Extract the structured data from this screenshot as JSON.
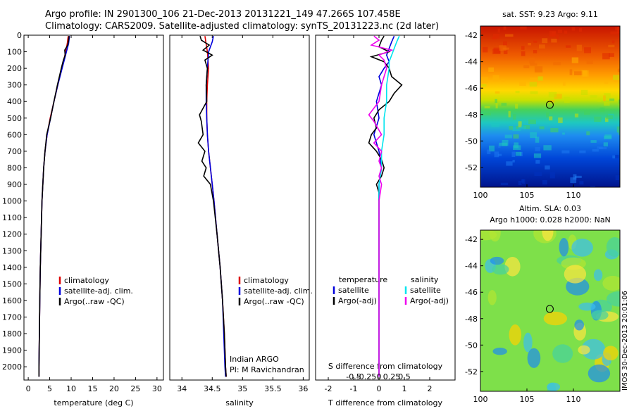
{
  "title": {
    "line1": "Argo profile: IN 2901300_106 21-Dec-2013 20131221_149 47.266S 107.458E",
    "line2": "Climatology: CARS2009. Satellite-adjusted climatology: synTS_20131223.nc (2d later)"
  },
  "colors": {
    "climatology": "#dd0000",
    "satellite": "#0000dd",
    "argo": "#000000",
    "sal_satellite": "#00e5ee",
    "sal_argo": "#ee00ee"
  },
  "chart_data": [
    {
      "type": "line",
      "id": "temperature",
      "xlabel": "temperature (deg C)",
      "xlim": [
        -1,
        31.5
      ],
      "ylim": [
        0,
        2080
      ],
      "xticks": [
        0,
        5,
        10,
        15,
        20,
        25,
        30
      ],
      "yticks": [
        0,
        100,
        200,
        300,
        400,
        500,
        600,
        700,
        800,
        900,
        1000,
        1100,
        1200,
        1300,
        1400,
        1500,
        1600,
        1700,
        1800,
        1900,
        2000
      ],
      "legend": {
        "position": "lower-center",
        "entries": [
          "climatology",
          "satellite-adj. clim.",
          "Argo(..raw -QC)"
        ]
      },
      "series": [
        {
          "name": "climatology",
          "depth": [
            5,
            50,
            100,
            150,
            200,
            300,
            400,
            500,
            600,
            700,
            800,
            900,
            1000,
            1200,
            1400,
            1600,
            1800,
            2000,
            2060
          ],
          "values": [
            9.3,
            9.1,
            8.7,
            8.3,
            7.8,
            6.9,
            6.0,
            5.1,
            4.4,
            3.9,
            3.6,
            3.4,
            3.2,
            3.0,
            2.8,
            2.7,
            2.6,
            2.5,
            2.5
          ]
        },
        {
          "name": "satellite-adj. clim.",
          "depth": [
            5,
            50,
            100,
            150,
            200,
            300,
            400,
            500,
            600,
            700,
            800,
            900,
            1000,
            1200,
            1400,
            1600,
            1800,
            2000,
            2060
          ],
          "values": [
            9.6,
            9.4,
            8.9,
            8.4,
            7.9,
            6.9,
            6.0,
            5.2,
            4.4,
            3.9,
            3.6,
            3.4,
            3.2,
            3.0,
            2.8,
            2.7,
            2.6,
            2.5,
            2.5
          ]
        },
        {
          "name": "Argo(..raw -QC)",
          "depth": [
            5,
            30,
            60,
            90,
            120,
            150,
            200,
            300,
            400,
            500,
            600,
            700,
            800,
            900,
            1000,
            1200,
            1400,
            1600,
            1800,
            2000,
            2060
          ],
          "values": [
            9.5,
            9.4,
            9.2,
            8.5,
            8.6,
            8.2,
            7.7,
            6.8,
            6.0,
            5.2,
            4.3,
            3.9,
            3.6,
            3.4,
            3.2,
            3.0,
            2.8,
            2.7,
            2.6,
            2.5,
            2.5
          ]
        }
      ]
    },
    {
      "type": "line",
      "id": "salinity",
      "xlabel": "salinity",
      "xlim": [
        33.8,
        36.1
      ],
      "ylim": [
        0,
        2080
      ],
      "xticks": [
        34,
        34.5,
        35,
        35.5,
        36
      ],
      "legend": {
        "position": "lower-center",
        "entries": [
          "climatology",
          "satellite-adj. clim.",
          "Argo(..raw -QC)"
        ]
      },
      "annotation": [
        "Indian ARGO",
        "PI: M Ravichandran"
      ],
      "series": [
        {
          "name": "climatology",
          "depth": [
            5,
            100,
            200,
            300,
            400,
            500,
            600,
            700,
            800,
            900,
            1000,
            1200,
            1400,
            1600,
            1800,
            2000,
            2060
          ],
          "values": [
            34.38,
            34.42,
            34.44,
            34.42,
            34.41,
            34.41,
            34.42,
            34.44,
            34.47,
            34.5,
            34.53,
            34.58,
            34.63,
            34.67,
            34.7,
            34.72,
            34.73
          ]
        },
        {
          "name": "satellite-adj. clim.",
          "depth": [
            5,
            40,
            100,
            200,
            300,
            400,
            500,
            600,
            700,
            800,
            900,
            1000,
            1200,
            1400,
            1600,
            1800,
            2000,
            2060
          ],
          "values": [
            34.52,
            34.5,
            34.44,
            34.42,
            34.4,
            34.4,
            34.41,
            34.42,
            34.44,
            34.47,
            34.5,
            34.53,
            34.58,
            34.63,
            34.67,
            34.69,
            34.71,
            34.72
          ]
        },
        {
          "name": "Argo(..raw -QC)",
          "depth": [
            5,
            30,
            60,
            90,
            120,
            150,
            200,
            300,
            400,
            480,
            520,
            600,
            650,
            700,
            760,
            800,
            850,
            900,
            1000,
            1200,
            1400,
            1600,
            1800,
            2000,
            2060
          ],
          "values": [
            34.3,
            34.32,
            34.45,
            34.35,
            34.5,
            34.38,
            34.42,
            34.4,
            34.41,
            34.29,
            34.32,
            34.35,
            34.27,
            34.38,
            34.33,
            34.4,
            34.36,
            34.47,
            34.52,
            34.58,
            34.63,
            34.67,
            34.7,
            34.72,
            34.73
          ]
        }
      ]
    },
    {
      "type": "line",
      "id": "difference",
      "xlabel": "T difference from climatology",
      "xlabel_top": "S difference from climatology",
      "xlim": [
        -2.5,
        3.0
      ],
      "ylim": [
        0,
        2080
      ],
      "xticks": [
        -2,
        -1,
        0,
        1,
        2
      ],
      "xticks_top": [
        "-0.5",
        "-0.25",
        "0",
        "0.25",
        "0.5"
      ],
      "legend_headers": [
        "temperature",
        "salinity"
      ],
      "legend_left": [
        "satellite",
        "Argo(-adj)"
      ],
      "legend_right": [
        "satellite",
        "Argo(-adj)"
      ],
      "series": [
        {
          "name": "temperature satellite",
          "depth": [
            5,
            40,
            80,
            120,
            160,
            200,
            250,
            300,
            400,
            500,
            600,
            650,
            700,
            800,
            900,
            1000,
            1200,
            1500,
            1800,
            2000,
            2060
          ],
          "values": [
            0.6,
            0.5,
            0.4,
            0.3,
            0.4,
            0.2,
            0.0,
            0.1,
            -0.1,
            0.0,
            -0.2,
            -0.1,
            0.0,
            0.1,
            0.0,
            0.0,
            0.0,
            0.0,
            0.0,
            0.0,
            0.0
          ]
        },
        {
          "name": "temperature Argo(-adj)",
          "depth": [
            5,
            30,
            70,
            100,
            130,
            160,
            200,
            250,
            300,
            350,
            400,
            450,
            500,
            560,
            600,
            650,
            700,
            750,
            800,
            850,
            900,
            950,
            1000,
            1100,
            1200,
            1400,
            1600,
            1800,
            2000,
            2060
          ],
          "values": [
            0.2,
            0.1,
            0.0,
            0.4,
            -0.3,
            0.2,
            0.4,
            0.5,
            0.9,
            0.6,
            0.4,
            0.0,
            -0.2,
            -0.1,
            -0.3,
            -0.4,
            -0.1,
            0.1,
            0.2,
            0.1,
            -0.1,
            0.0,
            0.0,
            0.0,
            0.0,
            0.0,
            0.0,
            0.0,
            0.0,
            0.0
          ]
        },
        {
          "name": "salinity satellite",
          "depth": [
            5,
            40,
            80,
            120,
            160,
            200,
            300,
            400,
            500,
            600,
            700,
            800,
            900,
            1000,
            1200,
            1500,
            1800,
            2000,
            2060
          ],
          "values": [
            0.8,
            0.7,
            0.6,
            0.5,
            0.4,
            0.4,
            0.3,
            0.3,
            0.2,
            0.2,
            0.1,
            0.1,
            0.0,
            0.0,
            0.0,
            0.0,
            0.0,
            0.0,
            0.0
          ]
        },
        {
          "name": "salinity Argo(-adj)",
          "depth": [
            5,
            30,
            60,
            90,
            120,
            150,
            200,
            300,
            400,
            480,
            520,
            600,
            650,
            700,
            760,
            800,
            850,
            900,
            1000,
            1200,
            1500,
            1800,
            2000,
            2060
          ],
          "values": [
            -0.2,
            0.0,
            -0.3,
            0.5,
            0.0,
            0.2,
            0.3,
            0.1,
            0.0,
            -0.4,
            -0.2,
            0.1,
            -0.2,
            0.1,
            0.0,
            0.1,
            0.0,
            0.1,
            0.0,
            0.0,
            0.0,
            0.0,
            0.0,
            0.0
          ]
        }
      ]
    },
    {
      "type": "heatmap",
      "id": "sst-map",
      "title": "sat. SST: 9.23 Argo: 9.11",
      "xlim": [
        100,
        115
      ],
      "ylim": [
        -53.5,
        -41.3
      ],
      "xticks": [
        100,
        105,
        110
      ],
      "yticks": [
        -42,
        -44,
        -46,
        -48,
        -50,
        -52
      ],
      "marker": {
        "lon": 107.458,
        "lat": -47.266
      }
    },
    {
      "type": "heatmap",
      "id": "sla-map",
      "title_line1": "Altim. SLA: 0.03",
      "title_line2": "Argo h1000: 0.028 h2000: NaN",
      "xlim": [
        100,
        115
      ],
      "ylim": [
        -53.5,
        -41.3
      ],
      "xticks": [
        100,
        105,
        110
      ],
      "yticks": [
        -42,
        -44,
        -46,
        -48,
        -50,
        -52
      ],
      "marker": {
        "lon": 107.458,
        "lat": -47.266
      }
    }
  ],
  "footer": "IMOS 30-Dec-2013 20:01:06"
}
